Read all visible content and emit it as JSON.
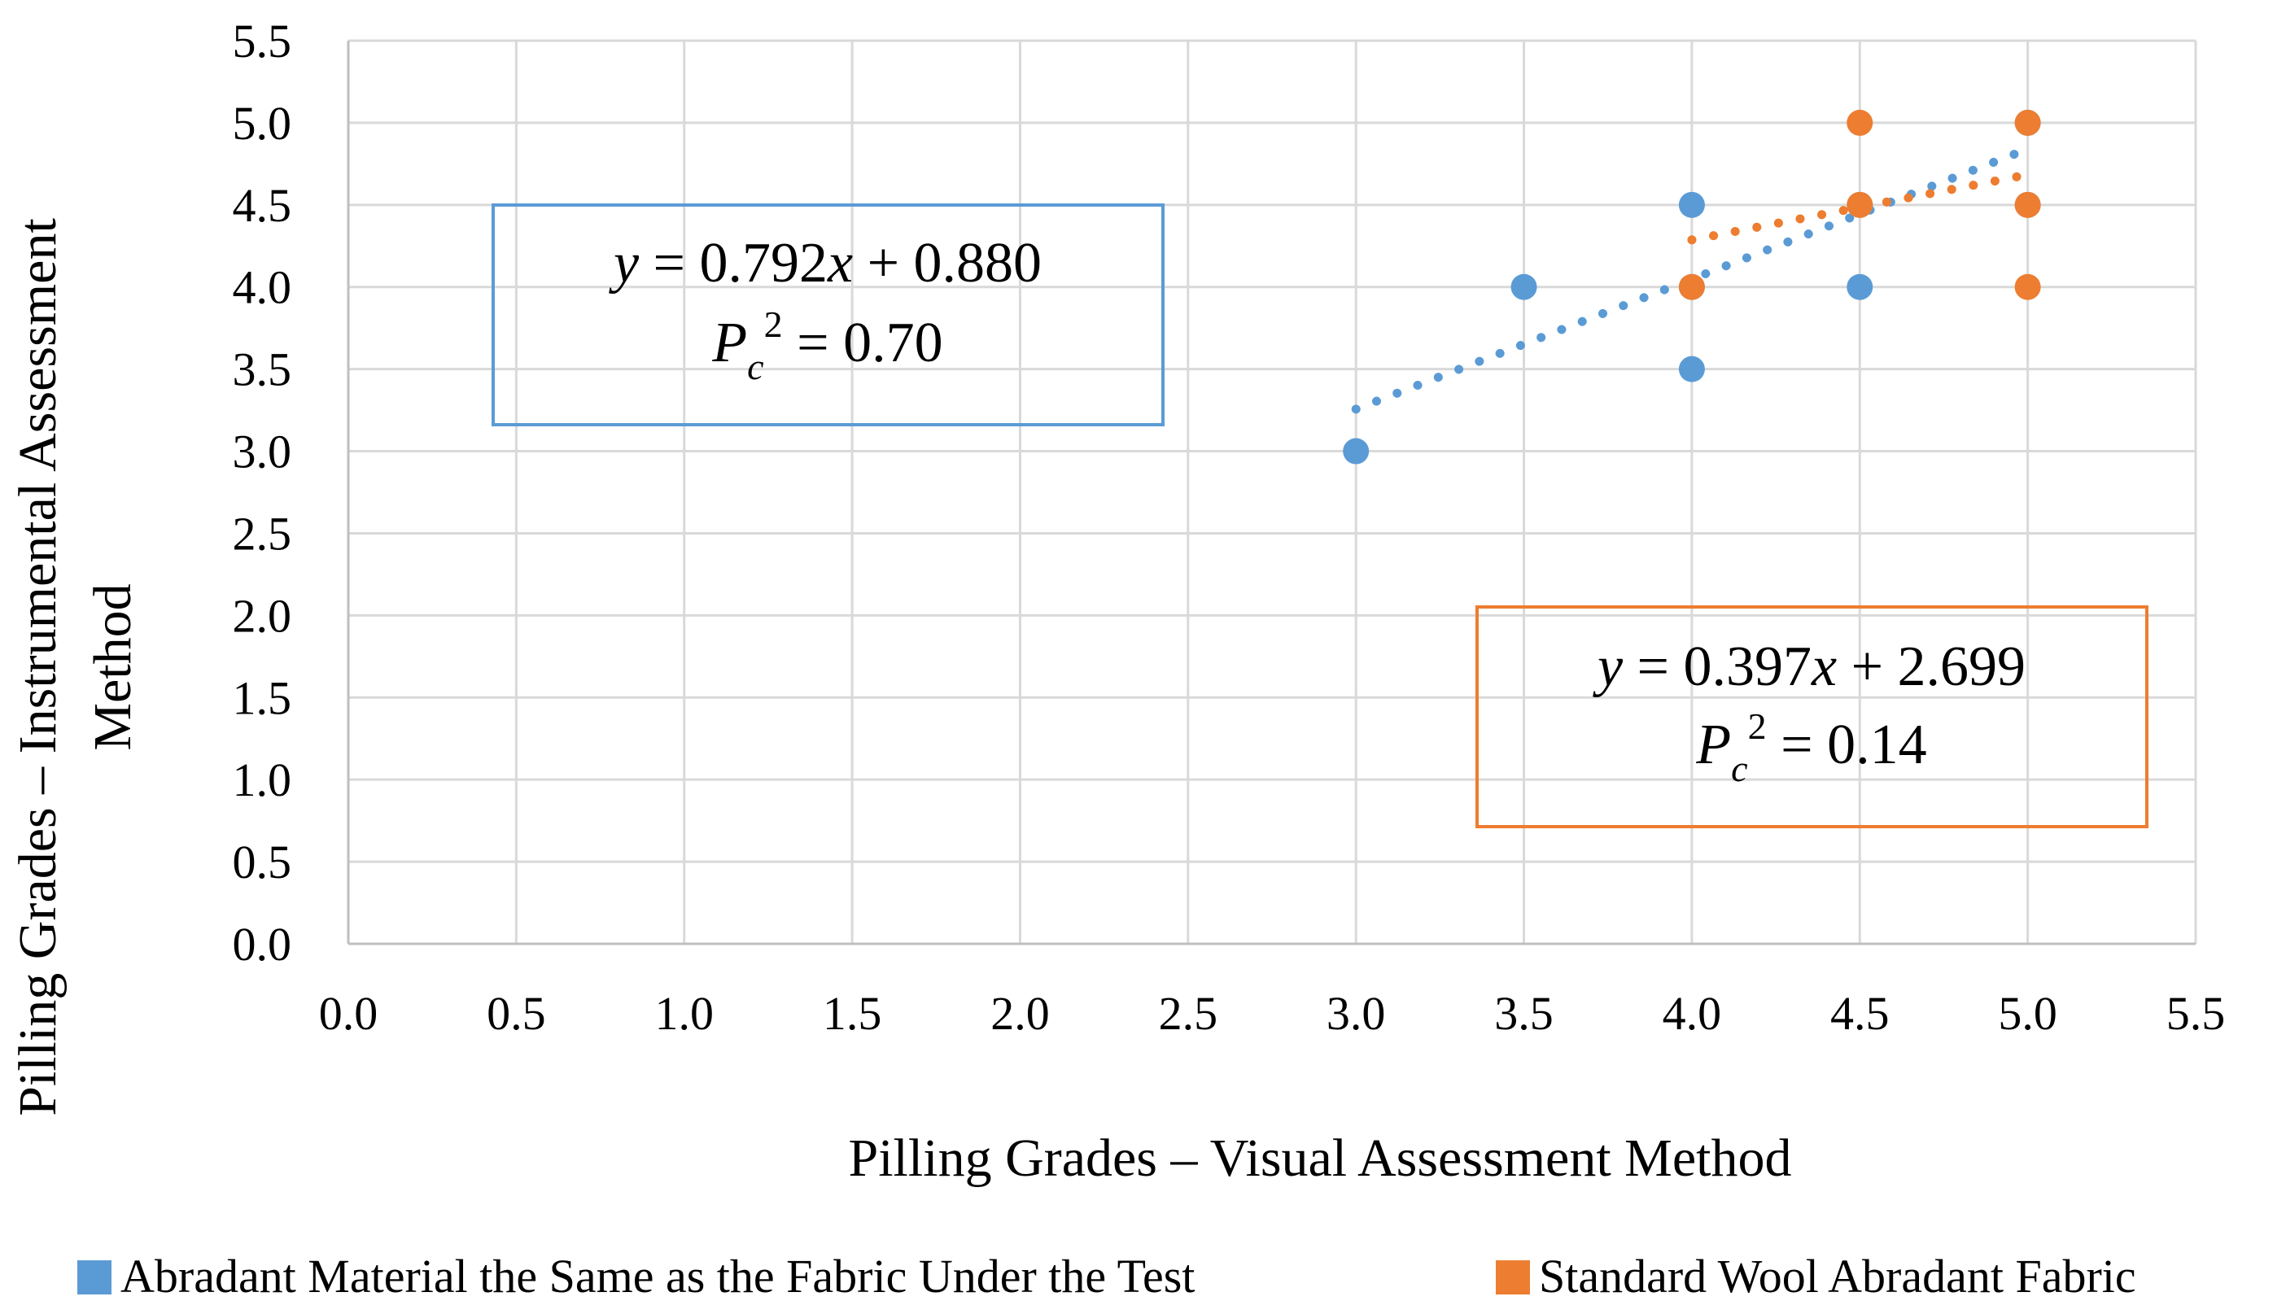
{
  "chart_data": {
    "type": "scatter",
    "title": "",
    "xlabel": "Pilling Grades – Visual Assessment Method",
    "ylabel_line1": "Pilling Grades – Instrumental Assessment",
    "ylabel_line2": "Method",
    "xlim": [
      0.0,
      5.5
    ],
    "ylim": [
      0.0,
      5.5
    ],
    "x_ticks": [
      "0.0",
      "0.5",
      "1.0",
      "1.5",
      "2.0",
      "2.5",
      "3.0",
      "3.5",
      "4.0",
      "4.5",
      "5.0",
      "5.5"
    ],
    "y_ticks": [
      "0.0",
      "0.5",
      "1.0",
      "1.5",
      "2.0",
      "2.5",
      "3.0",
      "3.5",
      "4.0",
      "4.5",
      "5.0",
      "5.5"
    ],
    "grid": true,
    "legend_position": "bottom",
    "series": [
      {
        "name": "Abradant Material the Same as the Fabric Under the Test",
        "color": "#5b9bd5",
        "points": [
          {
            "x": 3.0,
            "y": 3.0
          },
          {
            "x": 3.5,
            "y": 4.0
          },
          {
            "x": 4.0,
            "y": 4.5
          },
          {
            "x": 4.0,
            "y": 4.0
          },
          {
            "x": 4.0,
            "y": 3.5
          },
          {
            "x": 4.5,
            "y": 4.5
          },
          {
            "x": 4.5,
            "y": 4.0
          },
          {
            "x": 5.0,
            "y": 5.0
          },
          {
            "x": 5.0,
            "y": 4.5
          }
        ],
        "trendline": {
          "slope": 0.792,
          "intercept": 0.88,
          "x_range": [
            3.0,
            5.0
          ],
          "equation_text": "y = 0.792x + 0.880",
          "eq_y": "y",
          "eq_mid": " = 0.792",
          "eq_x": "x",
          "eq_end": " + 0.880",
          "r2_symbol": "P",
          "r2_sub": "c",
          "r2_sup": "2",
          "r2_value": " = 0.70"
        }
      },
      {
        "name": "Standard Wool Abradant Fabric",
        "color": "#ed7d31",
        "points": [
          {
            "x": 4.0,
            "y": 4.0
          },
          {
            "x": 4.5,
            "y": 5.0
          },
          {
            "x": 4.5,
            "y": 4.5
          },
          {
            "x": 5.0,
            "y": 5.0
          },
          {
            "x": 5.0,
            "y": 4.5
          },
          {
            "x": 5.0,
            "y": 4.0
          }
        ],
        "trendline": {
          "slope": 0.397,
          "intercept": 2.699,
          "x_range": [
            4.0,
            5.0
          ],
          "equation_text": "y = 0.397x + 2.699",
          "eq_y": "y",
          "eq_mid": " = 0.397",
          "eq_x": "x",
          "eq_end": " + 2.699",
          "r2_symbol": "P",
          "r2_sub": "c",
          "r2_sup": "2",
          "r2_value": " = 0.14"
        }
      }
    ]
  }
}
